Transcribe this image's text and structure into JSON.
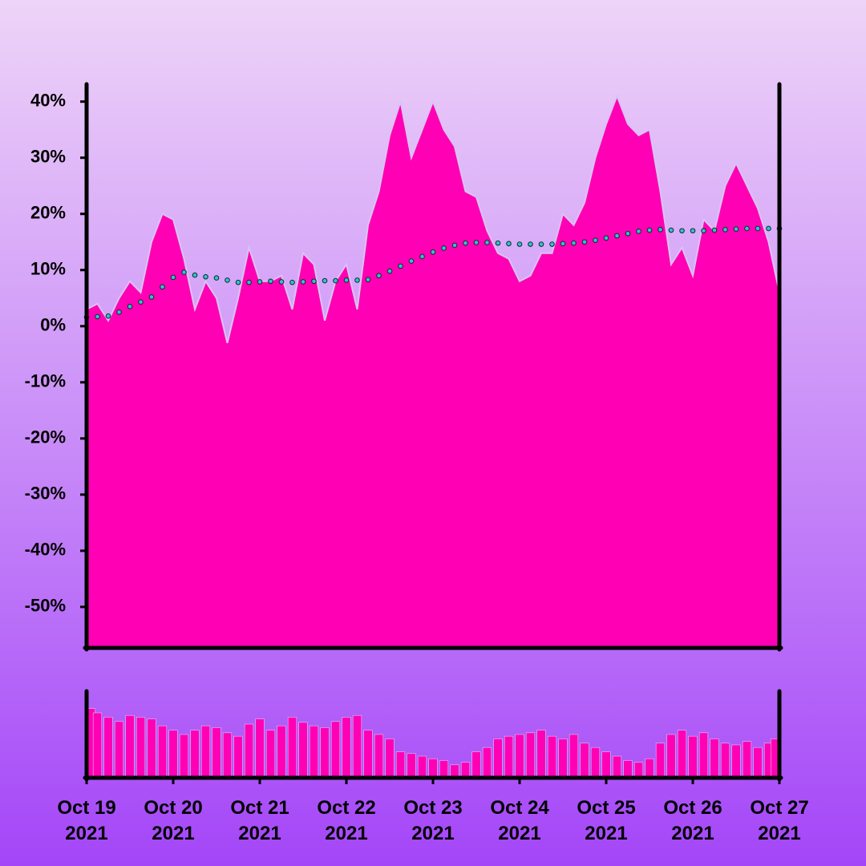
{
  "chart_data": [
    {
      "type": "area",
      "x": [
        "2021-10-19T00:00",
        "2021-10-19T03:00",
        "2021-10-19T06:00",
        "2021-10-19T09:00",
        "2021-10-19T12:00",
        "2021-10-19T15:00",
        "2021-10-19T18:00",
        "2021-10-19T21:00",
        "2021-10-20T00:00",
        "2021-10-20T03:00",
        "2021-10-20T06:00",
        "2021-10-20T09:00",
        "2021-10-20T12:00",
        "2021-10-20T15:00",
        "2021-10-20T18:00",
        "2021-10-20T21:00",
        "2021-10-21T00:00",
        "2021-10-21T03:00",
        "2021-10-21T06:00",
        "2021-10-21T09:00",
        "2021-10-21T12:00",
        "2021-10-21T15:00",
        "2021-10-21T18:00",
        "2021-10-21T21:00",
        "2021-10-22T00:00",
        "2021-10-22T03:00",
        "2021-10-22T06:00",
        "2021-10-22T09:00",
        "2021-10-22T12:00",
        "2021-10-22T15:00",
        "2021-10-22T18:00",
        "2021-10-22T21:00",
        "2021-10-23T00:00",
        "2021-10-23T03:00",
        "2021-10-23T06:00",
        "2021-10-23T09:00",
        "2021-10-23T12:00",
        "2021-10-23T15:00",
        "2021-10-23T18:00",
        "2021-10-23T21:00",
        "2021-10-24T00:00",
        "2021-10-24T03:00",
        "2021-10-24T06:00",
        "2021-10-24T09:00",
        "2021-10-24T12:00",
        "2021-10-24T15:00",
        "2021-10-24T18:00",
        "2021-10-24T21:00",
        "2021-10-25T00:00",
        "2021-10-25T03:00",
        "2021-10-25T06:00",
        "2021-10-25T09:00",
        "2021-10-25T12:00",
        "2021-10-25T15:00",
        "2021-10-25T18:00",
        "2021-10-25T21:00",
        "2021-10-26T00:00",
        "2021-10-26T03:00",
        "2021-10-26T06:00",
        "2021-10-26T09:00",
        "2021-10-26T12:00",
        "2021-10-26T15:00",
        "2021-10-26T18:00",
        "2021-10-26T21:00",
        "2021-10-27T00:00"
      ],
      "series": [
        {
          "type": "area",
          "color": "#ff00b4",
          "edge_color": "#d8c4f4",
          "values": [
            3,
            4,
            1,
            5,
            8,
            6,
            15,
            20,
            19,
            12,
            3,
            8,
            5,
            -3,
            5,
            14,
            8,
            8,
            9,
            3,
            13,
            11,
            1,
            8,
            11,
            3,
            18,
            24,
            34,
            40,
            30,
            35,
            40,
            35,
            32,
            24,
            23,
            17,
            13,
            12,
            8,
            9,
            13,
            13,
            20,
            18,
            22,
            30,
            36,
            41,
            36,
            34,
            35,
            24,
            11,
            14,
            9,
            19,
            17,
            25,
            29,
            25,
            21,
            15,
            6
          ]
        },
        {
          "type": "dots",
          "color": "#33c4c4",
          "values": [
            1.6,
            1.7,
            1.8,
            2.5,
            3.5,
            4.3,
            5.2,
            7,
            8.7,
            9.6,
            9.1,
            8.8,
            8.6,
            8.2,
            7.8,
            7.8,
            7.9,
            8,
            7.9,
            7.8,
            7.9,
            8,
            8.1,
            8.1,
            8.2,
            8.2,
            8.3,
            9,
            9.8,
            10.7,
            11.6,
            12.4,
            13.2,
            13.9,
            14.4,
            14.8,
            14.9,
            14.9,
            14.8,
            14.7,
            14.6,
            14.6,
            14.6,
            14.6,
            14.7,
            14.8,
            15,
            15.3,
            15.7,
            16.1,
            16.5,
            16.9,
            17.1,
            17.2,
            17.1,
            17,
            17,
            17,
            17.1,
            17.2,
            17.3,
            17.4,
            17.4,
            17.4,
            17.4
          ]
        }
      ],
      "xlim": [
        "2021-10-19T00:00",
        "2021-10-27T00:00"
      ],
      "xticks": [
        {
          "value": "2021-10-19T00:00",
          "label": "Oct 19\n2021"
        },
        {
          "value": "2021-10-20T00:00",
          "label": "Oct 20\n2021"
        },
        {
          "value": "2021-10-21T00:00",
          "label": "Oct 21\n2021"
        },
        {
          "value": "2021-10-22T00:00",
          "label": "Oct 22\n2021"
        },
        {
          "value": "2021-10-23T00:00",
          "label": "Oct 23\n2021"
        },
        {
          "value": "2021-10-24T00:00",
          "label": "Oct 24\n2021"
        },
        {
          "value": "2021-10-25T00:00",
          "label": "Oct 25\n2021"
        },
        {
          "value": "2021-10-26T00:00",
          "label": "Oct 26\n2021"
        },
        {
          "value": "2021-10-27T00:00",
          "label": "Oct 27\n2021"
        }
      ],
      "ylim": [
        -57.3,
        43.1
      ],
      "yticks": [
        {
          "value": -50,
          "label": "-50%"
        },
        {
          "value": -40,
          "label": "-40%"
        },
        {
          "value": -30,
          "label": "-30%"
        },
        {
          "value": -20,
          "label": "-20%"
        },
        {
          "value": -10,
          "label": "-10%"
        },
        {
          "value": 0,
          "label": "0%"
        },
        {
          "value": 10,
          "label": "10%"
        },
        {
          "value": 20,
          "label": "20%"
        },
        {
          "value": 30,
          "label": "30%"
        },
        {
          "value": 40,
          "label": "40%"
        }
      ]
    },
    {
      "type": "bar",
      "color": "#ff00b4",
      "values": [
        80,
        75,
        70,
        65,
        72,
        70,
        68,
        60,
        55,
        50,
        55,
        60,
        58,
        52,
        48,
        62,
        68,
        55,
        60,
        70,
        64,
        60,
        58,
        65,
        70,
        72,
        55,
        50,
        45,
        30,
        28,
        25,
        22,
        20,
        15,
        18,
        30,
        35,
        45,
        48,
        50,
        52,
        55,
        48,
        45,
        50,
        40,
        35,
        30,
        25,
        20,
        18,
        22,
        40,
        50,
        55,
        48,
        52,
        45,
        40,
        38,
        42,
        35,
        40,
        45
      ],
      "ylim": [
        0,
        100
      ]
    }
  ]
}
